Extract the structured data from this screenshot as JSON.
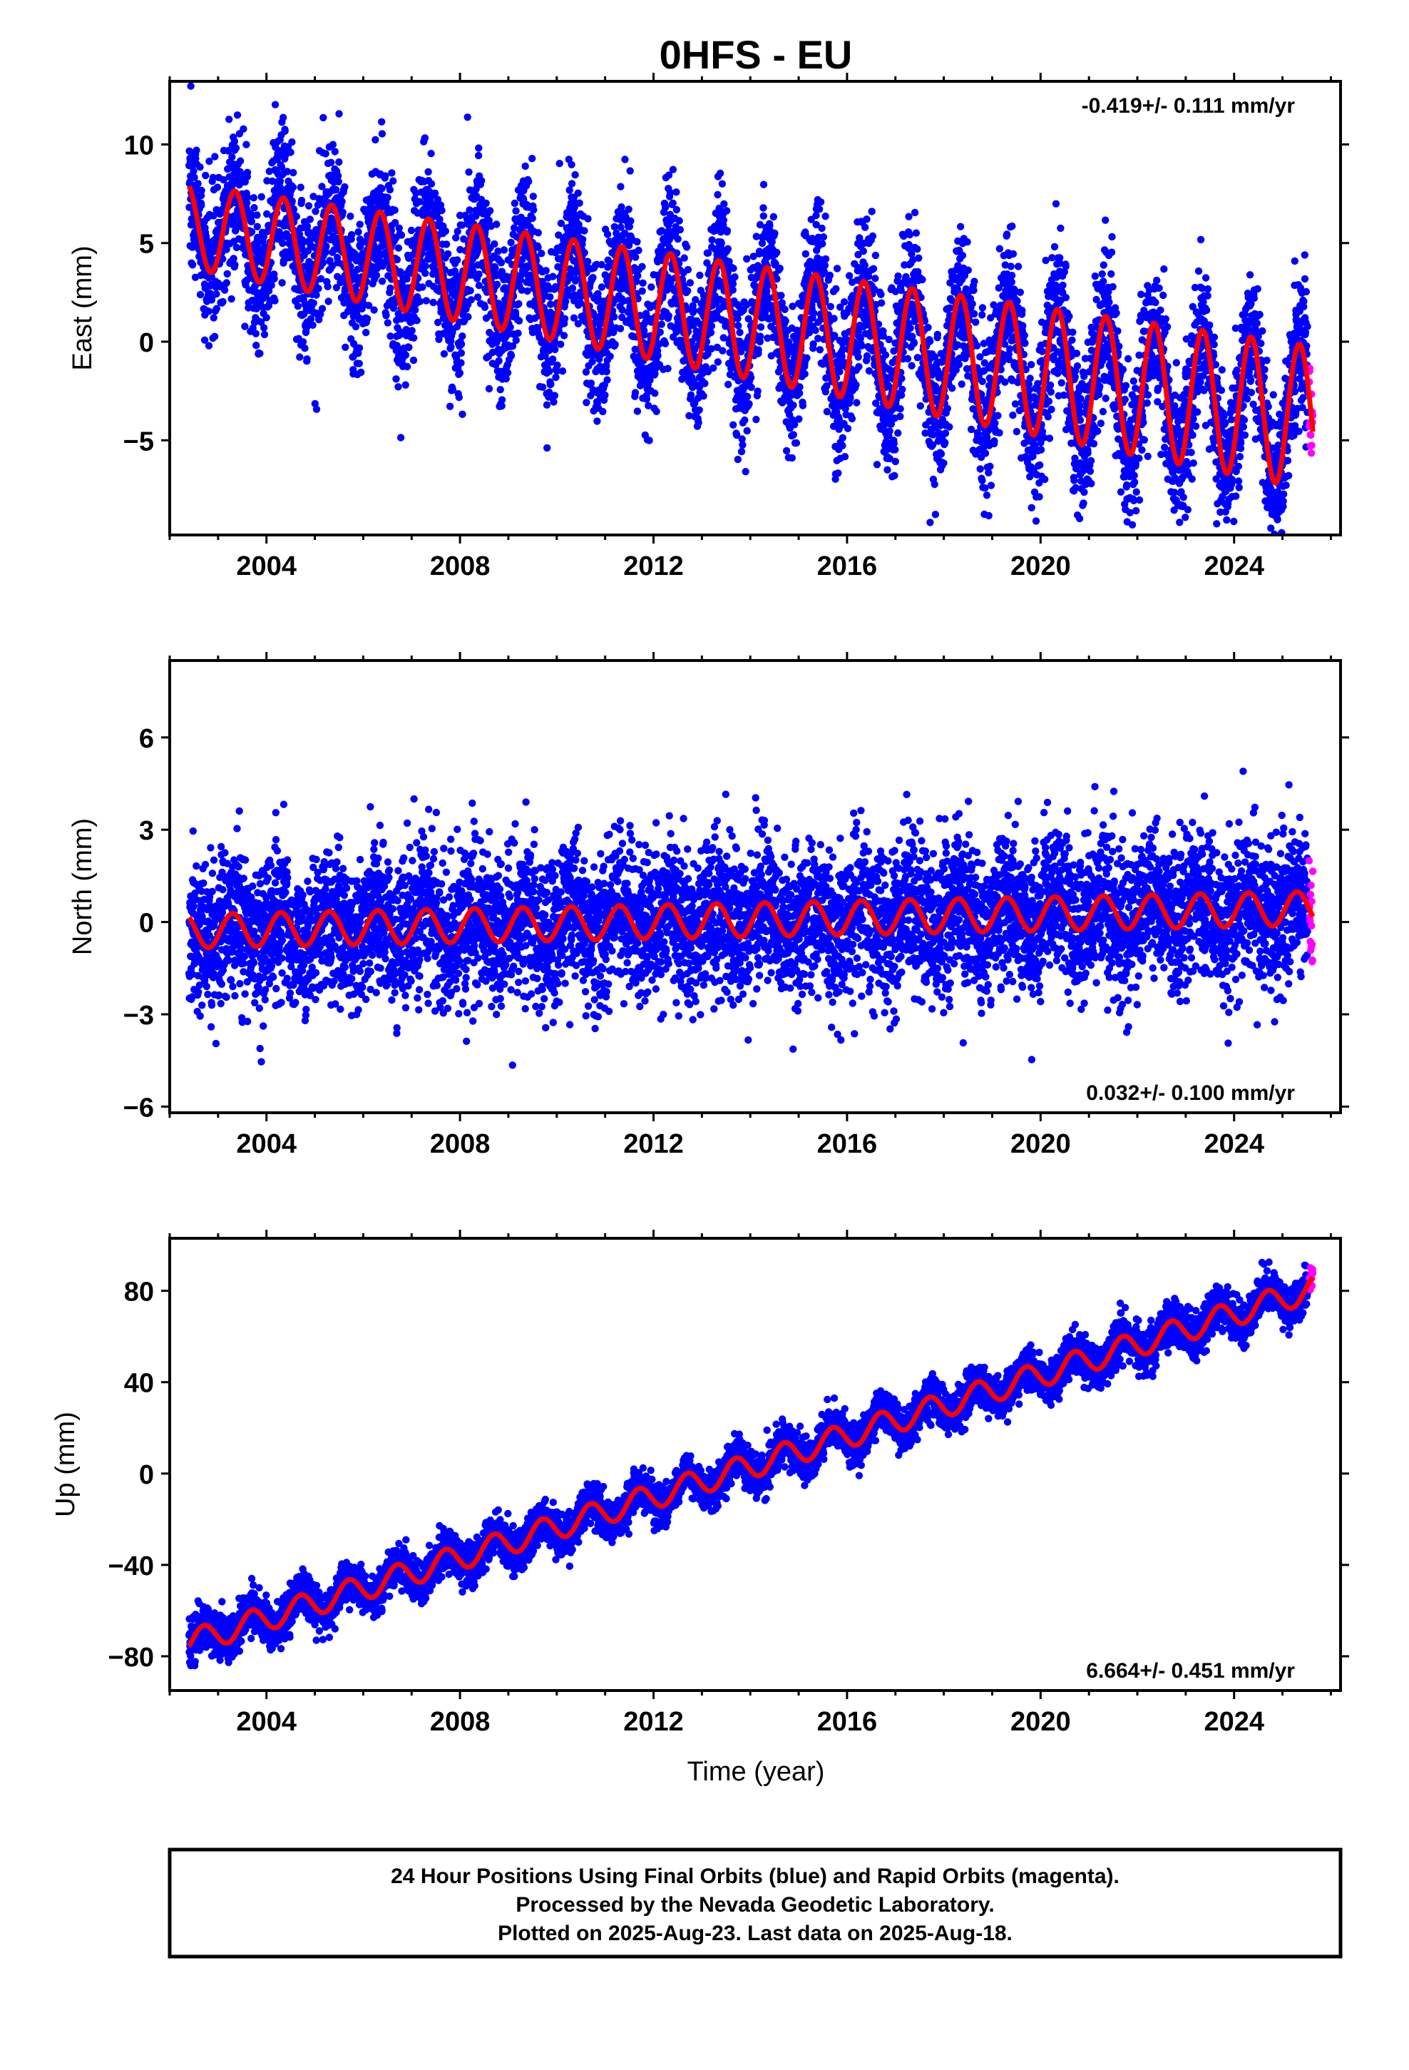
{
  "title": "0HFS - EU",
  "x_axis_label": "Time (year)",
  "footer": {
    "line1": "24 Hour Positions Using Final Orbits (blue) and Rapid Orbits (magenta).",
    "line2": "Processed by the Nevada Geodetic Laboratory.",
    "line3": "Plotted on 2025-Aug-23. Last data on 2025-Aug-18."
  },
  "colors": {
    "final_orbits": "#0000ff",
    "rapid_orbits": "#ff00ff",
    "model_fit": "#ff0000",
    "frame": "#000000"
  },
  "chart_data": [
    {
      "type": "scatter",
      "component": "East",
      "ylabel": "East (mm)",
      "rate_label": "-0.419+/- 0.111 mm/yr",
      "rate_position": "top-right",
      "xlim": [
        2002.0,
        2026.2
      ],
      "ylim": [
        -9.8,
        13.2
      ],
      "x_ticks": [
        2004,
        2008,
        2012,
        2016,
        2020,
        2024
      ],
      "y_ticks": [
        10,
        5,
        0,
        -5
      ],
      "fit": {
        "offset": 5.85,
        "rate": -0.419,
        "ref_year": 2002.4,
        "annual_amplitude": 3.3,
        "annual_peak": 0.35,
        "amplitude_start": 2.1,
        "amplitude_end": 3.7
      },
      "scatter_sd": 1.9,
      "series": [
        {
          "name": "Final Orbits",
          "x_range": [
            2002.4,
            2025.52
          ]
        },
        {
          "name": "Rapid Orbits",
          "x_range": [
            2025.55,
            2025.63
          ]
        }
      ]
    },
    {
      "type": "scatter",
      "component": "North",
      "ylabel": "North (mm)",
      "rate_label": "0.032+/- 0.100 mm/yr",
      "rate_position": "bottom-right",
      "xlim": [
        2002.0,
        2026.2
      ],
      "ylim": [
        -6.2,
        8.5
      ],
      "x_ticks": [
        2004,
        2008,
        2012,
        2016,
        2020,
        2024
      ],
      "y_ticks": [
        6,
        3,
        0,
        -3,
        -6
      ],
      "fit": {
        "offset": -0.3,
        "rate": 0.032,
        "ref_year": 2002.4,
        "annual_amplitude": 0.55,
        "annual_peak": 0.3
      },
      "scatter_sd": 1.2,
      "series": [
        {
          "name": "Final Orbits",
          "x_range": [
            2002.4,
            2025.52
          ]
        },
        {
          "name": "Rapid Orbits",
          "x_range": [
            2025.55,
            2025.63
          ]
        }
      ]
    },
    {
      "type": "scatter",
      "component": "Up",
      "ylabel": "Up (mm)",
      "rate_label": "6.664+/- 0.451 mm/yr",
      "rate_position": "bottom-right",
      "xlim": [
        2002.0,
        2026.2
      ],
      "ylim": [
        -95,
        103
      ],
      "x_ticks": [
        2004,
        2008,
        2012,
        2016,
        2020,
        2024
      ],
      "y_ticks": [
        80,
        40,
        0,
        -40,
        -80
      ],
      "fit": {
        "offset": -74,
        "rate": 6.664,
        "ref_year": 2002.4,
        "annual_amplitude": 5.5,
        "annual_peak": 0.7
      },
      "scatter_sd": 4.5,
      "series": [
        {
          "name": "Final Orbits",
          "x_range": [
            2002.4,
            2025.52
          ]
        },
        {
          "name": "Rapid Orbits",
          "x_range": [
            2025.55,
            2025.63
          ]
        }
      ]
    }
  ]
}
